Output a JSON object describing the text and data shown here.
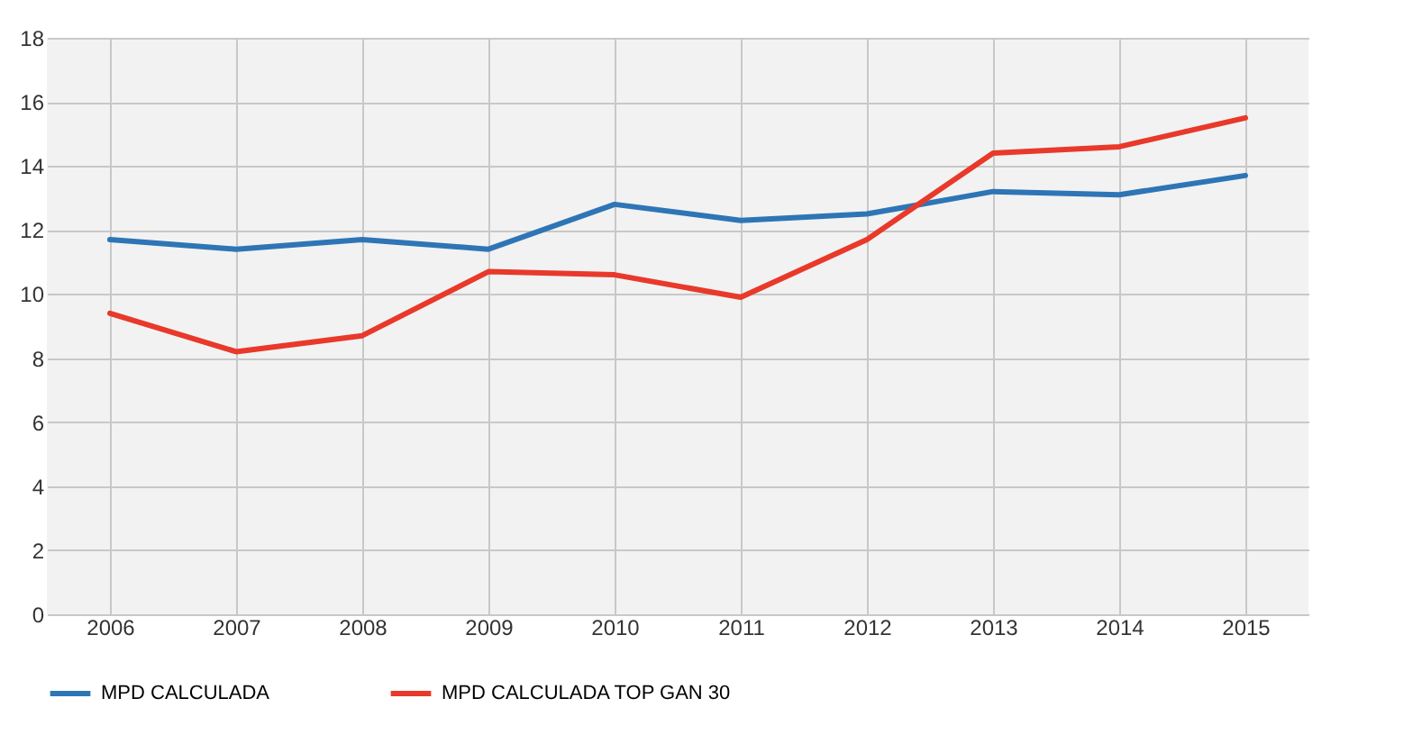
{
  "chart_data": {
    "type": "line",
    "categories": [
      "2006",
      "2007",
      "2008",
      "2009",
      "2010",
      "2011",
      "2012",
      "2013",
      "2014",
      "2015"
    ],
    "series": [
      {
        "name": "MPD CALCULADA",
        "color": "#2e75b6",
        "values": [
          11.7,
          11.4,
          11.7,
          11.4,
          12.8,
          12.3,
          12.5,
          13.2,
          13.1,
          13.7
        ]
      },
      {
        "name": "MPD CALCULADA TOP GAN 30",
        "color": "#e8392a",
        "values": [
          9.4,
          8.2,
          8.7,
          10.7,
          10.6,
          9.9,
          11.7,
          14.4,
          14.6,
          15.5
        ]
      }
    ],
    "ylim": [
      0,
      18
    ],
    "yticks": [
      0,
      2,
      4,
      6,
      8,
      10,
      12,
      14,
      16,
      18
    ],
    "grid": true,
    "legend": "bottom"
  }
}
